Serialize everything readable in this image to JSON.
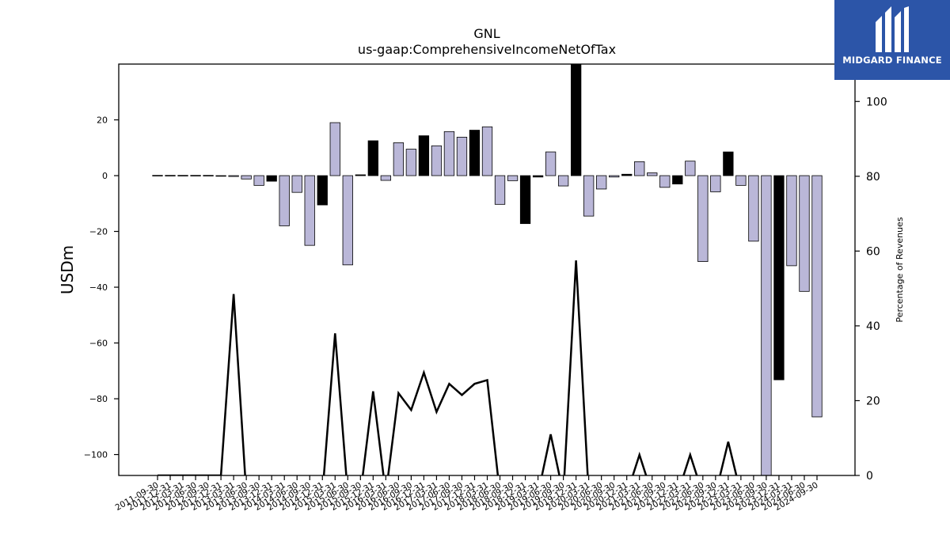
{
  "chart_data": {
    "type": "bar",
    "title": "GNL",
    "subtitle": "us-gaap:ComprehensiveIncomeNetOfTax",
    "ylabel": "USDm",
    "y2label": "Percentage of Revenues",
    "ylim": [
      -107.5,
      40
    ],
    "y2lim": [
      0,
      110
    ],
    "yticks": [
      20,
      0,
      -20,
      -40,
      -60,
      -80,
      -100
    ],
    "y2ticks": [
      0,
      20,
      40,
      60,
      80,
      100
    ],
    "categories": [
      "2011-09-30",
      "2011-12-31",
      "2012-03-31",
      "2012-06-30",
      "2012-09-30",
      "2012-12-31",
      "2013-03-31",
      "2013-06-30",
      "2013-09-30",
      "2013-12-31",
      "2014-03-31",
      "2014-06-30",
      "2014-09-30",
      "2014-12-31",
      "2015-03-31",
      "2015-06-30",
      "2015-09-30",
      "2015-12-31",
      "2016-03-31",
      "2016-06-30",
      "2016-09-30",
      "2016-12-31",
      "2017-03-31",
      "2017-06-30",
      "2017-09-30",
      "2017-12-31",
      "2018-03-31",
      "2018-06-30",
      "2018-09-30",
      "2018-12-31",
      "2019-03-31",
      "2019-06-30",
      "2019-09-30",
      "2019-12-31",
      "2020-03-31",
      "2020-06-30",
      "2020-09-30",
      "2020-12-31",
      "2021-03-31",
      "2021-06-30",
      "2021-09-30",
      "2021-12-31",
      "2022-03-31",
      "2022-06-30",
      "2022-09-30",
      "2022-12-31",
      "2023-03-31",
      "2023-06-30",
      "2023-09-30",
      "2023-12-31",
      "2024-03-31",
      "2024-06-30",
      "2024-09-30"
    ],
    "values": [
      0.1,
      0.1,
      0.1,
      0.1,
      0.1,
      -0.2,
      -0.3,
      -1.2,
      -3.5,
      -2.0,
      -18.0,
      -6.0,
      -25.0,
      -10.5,
      19.0,
      -32.0,
      0.3,
      12.5,
      -1.7,
      11.8,
      9.5,
      14.3,
      10.7,
      15.8,
      13.8,
      16.3,
      17.5,
      -10.3,
      -1.8,
      -17.2,
      -0.5,
      8.5,
      -3.7,
      40.0,
      -14.5,
      -4.8,
      -0.5,
      0.5,
      5.0,
      1.0,
      -4.2,
      -3.0,
      5.2,
      -30.8,
      -5.8,
      8.5,
      -3.5,
      -23.5,
      -108.0,
      -73.2,
      -32.3,
      -41.5,
      -86.5
    ],
    "bar_colors": [
      "#bab7d8",
      "#bab7d8",
      "#bab7d8",
      "#bab7d8",
      "#bab7d8",
      "#000000",
      "#bab7d8",
      "#bab7d8",
      "#bab7d8",
      "#000000",
      "#bab7d8",
      "#bab7d8",
      "#bab7d8",
      "#000000",
      "#bab7d8",
      "#bab7d8",
      "#000000",
      "#000000",
      "#bab7d8",
      "#bab7d8",
      "#bab7d8",
      "#000000",
      "#bab7d8",
      "#bab7d8",
      "#bab7d8",
      "#000000",
      "#bab7d8",
      "#bab7d8",
      "#bab7d8",
      "#000000",
      "#000000",
      "#bab7d8",
      "#bab7d8",
      "#000000",
      "#bab7d8",
      "#bab7d8",
      "#bab7d8",
      "#000000",
      "#bab7d8",
      "#bab7d8",
      "#bab7d8",
      "#000000",
      "#bab7d8",
      "#bab7d8",
      "#bab7d8",
      "#000000",
      "#bab7d8",
      "#bab7d8",
      "#bab7d8",
      "#000000",
      "#bab7d8",
      "#bab7d8",
      "#bab7d8"
    ],
    "line_series": {
      "axis": "secondary",
      "color": "#000000",
      "values": [
        0,
        0,
        0,
        0,
        0,
        0,
        48.5,
        -5,
        -5,
        -5,
        -5,
        -5,
        -5,
        -5,
        38,
        -5,
        -5,
        22.5,
        -5,
        22,
        17.5,
        27.5,
        17,
        24.5,
        21.5,
        24.5,
        25.5,
        -5,
        -5,
        -5,
        -5,
        11,
        -5,
        57.5,
        -5,
        -5,
        -5,
        -5,
        5.5,
        -5,
        -5,
        -5,
        5.5,
        -5,
        -5,
        9,
        -5,
        -5,
        -5,
        -5,
        -5,
        -5,
        -5
      ]
    },
    "grid": false,
    "legend": "none"
  },
  "logo": {
    "text": "MIDGARD FINANCE",
    "bg_color": "#2c55a8"
  }
}
